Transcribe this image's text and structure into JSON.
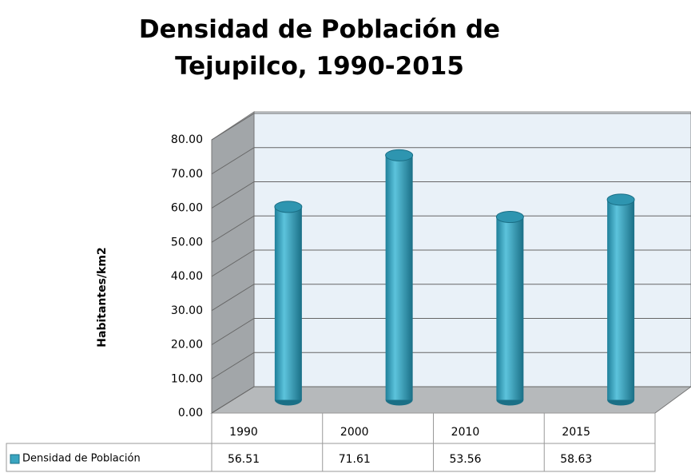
{
  "chart_data": {
    "type": "bar3d",
    "title": "Densidad de Población de Tejupilco, 1990-2015",
    "y_label": "Habitantes/km2",
    "categories": [
      "1990",
      "2000",
      "2010",
      "2015"
    ],
    "series": [
      {
        "name": "Densidad de Población",
        "color": "#3aa5c0",
        "values": [
          56.51,
          71.61,
          53.56,
          58.63
        ]
      }
    ],
    "ylim": [
      0,
      80
    ],
    "yticks": [
      {
        "value": 0,
        "label": "0.00"
      },
      {
        "value": 10,
        "label": "10.00"
      },
      {
        "value": 20,
        "label": "20.00"
      },
      {
        "value": 30,
        "label": "30.00"
      },
      {
        "value": 40,
        "label": "40.00"
      },
      {
        "value": 50,
        "label": "50.00"
      },
      {
        "value": 60,
        "label": "60.00"
      },
      {
        "value": 70,
        "label": "70.00"
      },
      {
        "value": 80,
        "label": "80.00"
      }
    ],
    "grid": true,
    "data_table": true
  }
}
